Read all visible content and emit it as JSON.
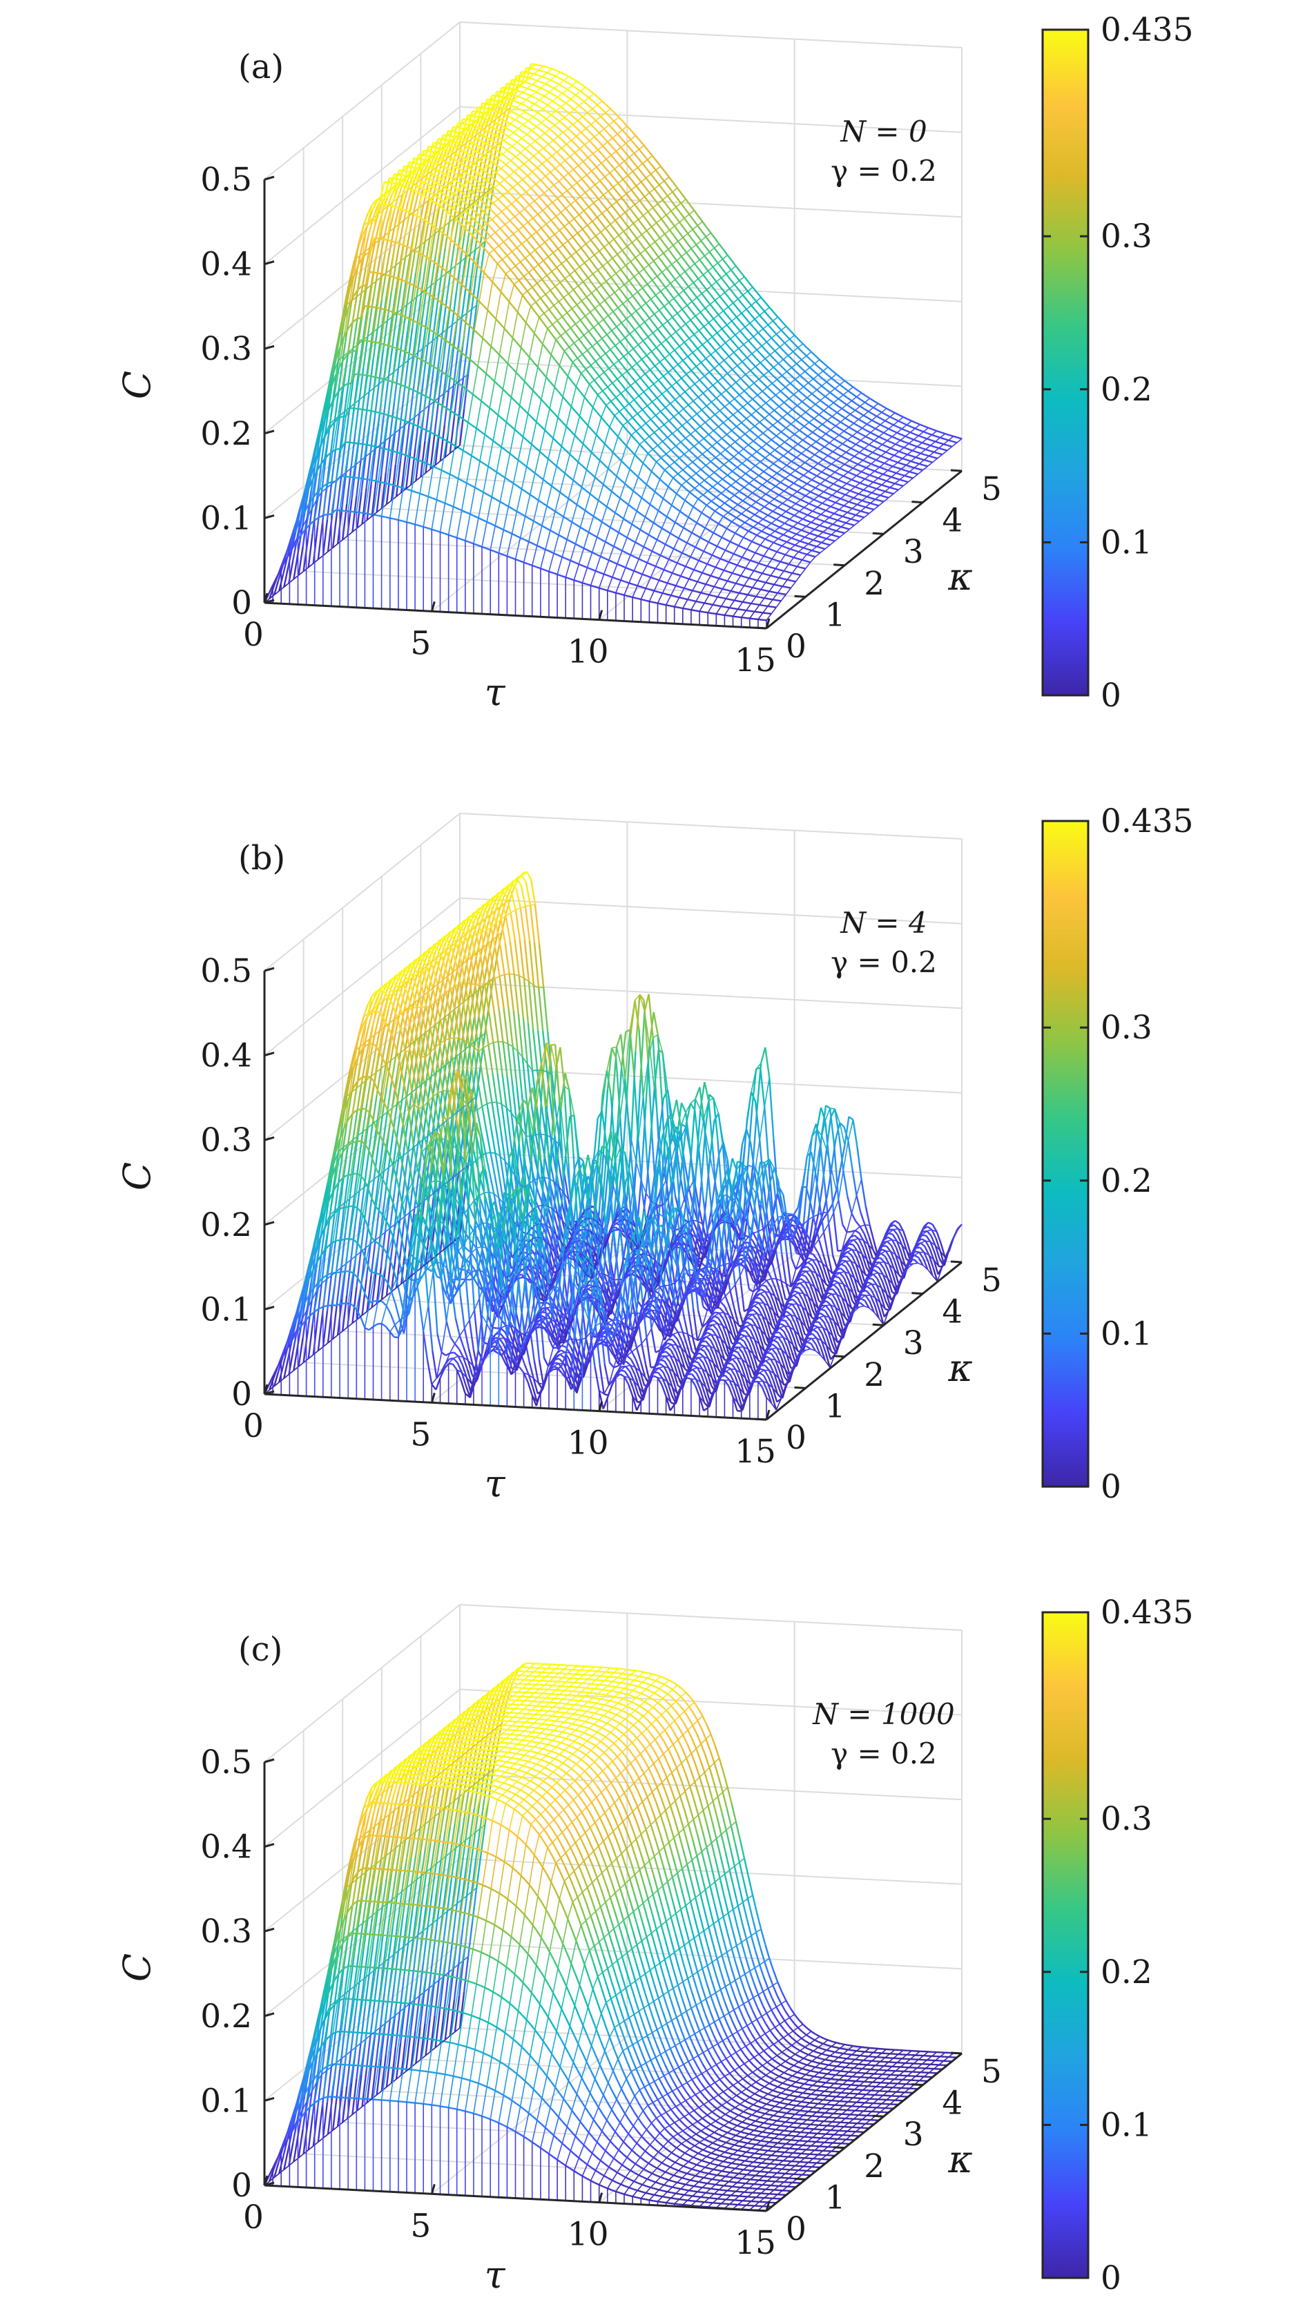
{
  "colormap": [
    "#3e26a8",
    "#4743f8",
    "#2c83f7",
    "#21a3e0",
    "#0dbcbf",
    "#38c785",
    "#8ec544",
    "#dbb929",
    "#fdc53b",
    "#f9fb15"
  ],
  "chart_data": [
    {
      "type": "surface",
      "panel_label": "(a)",
      "annotation": {
        "line1": "N = 0",
        "line2": "γ = 0.2"
      },
      "xlabel": "τ",
      "ylabel": "κ",
      "zlabel": "C",
      "xlim": [
        0,
        15
      ],
      "ylim": [
        0,
        5
      ],
      "zlim": [
        0,
        0.5
      ],
      "x_ticks": [
        "0",
        "5",
        "10",
        "15"
      ],
      "y_ticks": [
        "0",
        "1",
        "2",
        "3",
        "4",
        "5"
      ],
      "z_ticks": [
        "0",
        "0.1",
        "0.2",
        "0.3",
        "0.4",
        "0.5"
      ],
      "colorbar": {
        "min": 0,
        "max": 0.435,
        "ticks": [
          "0",
          "0.1",
          "0.2",
          "0.3",
          "0.435"
        ]
      },
      "surface_model": "decay",
      "peak_value": 0.435,
      "peak_tau": 2.0,
      "decay_tau": 9.5
    },
    {
      "type": "surface",
      "panel_label": "(b)",
      "annotation": {
        "line1": "N = 4",
        "line2": "γ = 0.2"
      },
      "xlabel": "τ",
      "ylabel": "κ",
      "zlabel": "C",
      "xlim": [
        0,
        15
      ],
      "ylim": [
        0,
        5
      ],
      "zlim": [
        0,
        0.5
      ],
      "x_ticks": [
        "0",
        "5",
        "10",
        "15"
      ],
      "y_ticks": [
        "0",
        "1",
        "2",
        "3",
        "4",
        "5"
      ],
      "z_ticks": [
        "0",
        "0.1",
        "0.2",
        "0.3",
        "0.4",
        "0.5"
      ],
      "colorbar": {
        "min": 0,
        "max": 0.435,
        "ticks": [
          "0",
          "0.1",
          "0.2",
          "0.3",
          "0.435"
        ]
      },
      "surface_model": "oscillating",
      "peak_value": 0.435,
      "peak_tau": 2.0,
      "revival_tau": [
        5.5,
        8.0,
        10.5
      ]
    },
    {
      "type": "surface",
      "panel_label": "(c)",
      "annotation": {
        "line1": "N = 1000",
        "line2": "γ = 0.2"
      },
      "xlabel": "τ",
      "ylabel": "κ",
      "zlabel": "C",
      "xlim": [
        0,
        15
      ],
      "ylim": [
        0,
        5
      ],
      "zlim": [
        0,
        0.5
      ],
      "x_ticks": [
        "0",
        "5",
        "10",
        "15"
      ],
      "y_ticks": [
        "0",
        "1",
        "2",
        "3",
        "4",
        "5"
      ],
      "z_ticks": [
        "0",
        "0.1",
        "0.2",
        "0.3",
        "0.4",
        "0.5"
      ],
      "colorbar": {
        "min": 0,
        "max": 0.435,
        "ticks": [
          "0",
          "0.1",
          "0.2",
          "0.3",
          "0.435"
        ]
      },
      "surface_model": "sigmoid",
      "peak_value": 0.435,
      "peak_tau": 2.0,
      "drop_tau": 8.5
    }
  ]
}
